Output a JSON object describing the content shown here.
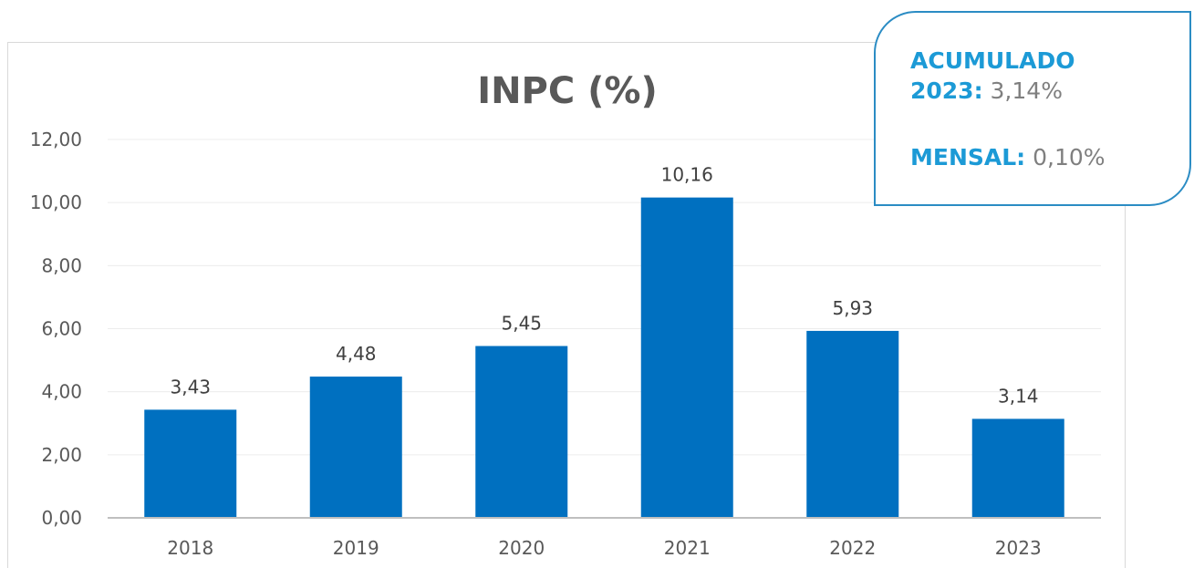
{
  "summary": {
    "accumulated_label_line1": "ACUMULADO",
    "accumulated_label_line2": "2023:",
    "accumulated_value": "3,14%",
    "monthly_label": "MENSAL:",
    "monthly_value": "0,10%",
    "accent_color": "#1c9ad6"
  },
  "chart_data": {
    "type": "bar",
    "title": "INPC (%)",
    "xlabel": "",
    "ylabel": "",
    "categories": [
      "2018",
      "2019",
      "2020",
      "2021",
      "2022",
      "2023"
    ],
    "values": [
      3.43,
      4.48,
      5.45,
      10.16,
      5.93,
      3.14
    ],
    "data_labels": [
      "3,43",
      "4,48",
      "5,45",
      "10,16",
      "5,93",
      "3,14"
    ],
    "ylim": [
      0,
      12
    ],
    "yticks": [
      0,
      2,
      4,
      6,
      8,
      10,
      12
    ],
    "ytick_labels": [
      "0,00",
      "2,00",
      "4,00",
      "6,00",
      "8,00",
      "10,00",
      "12,00"
    ],
    "grid": true,
    "legend": "none",
    "bar_color": "#0070c0"
  }
}
